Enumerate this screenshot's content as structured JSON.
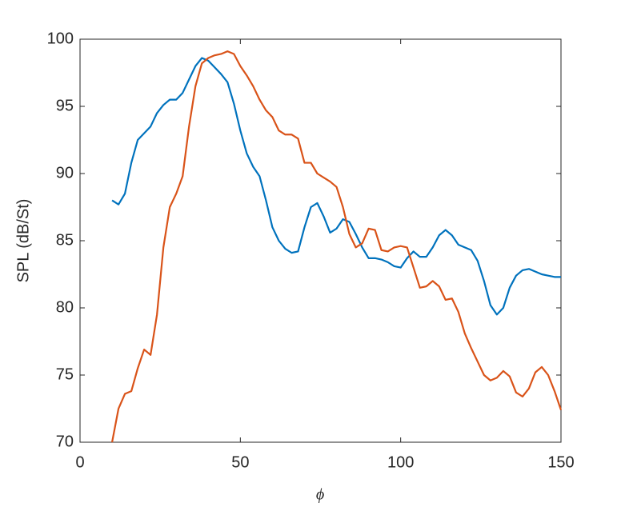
{
  "chart_data": {
    "type": "line",
    "xlabel": "ϕ",
    "ylabel": "SPL (dB/St)",
    "x": [
      10,
      12,
      14,
      16,
      18,
      20,
      22,
      24,
      26,
      28,
      30,
      32,
      34,
      36,
      38,
      40,
      42,
      44,
      46,
      48,
      50,
      52,
      54,
      56,
      58,
      60,
      62,
      64,
      66,
      68,
      70,
      72,
      74,
      76,
      78,
      80,
      82,
      84,
      86,
      88,
      90,
      92,
      94,
      96,
      98,
      100,
      102,
      104,
      106,
      108,
      110,
      112,
      114,
      116,
      118,
      120,
      122,
      124,
      126,
      128,
      130,
      132,
      134,
      136,
      138,
      140,
      142,
      144,
      146,
      148,
      150
    ],
    "series": [
      {
        "color": "#0072BD",
        "values": [
          88.0,
          87.7,
          88.5,
          90.8,
          92.5,
          93.0,
          93.5,
          94.5,
          95.1,
          95.5,
          95.5,
          96.0,
          97.0,
          98.0,
          98.6,
          98.4,
          97.9,
          97.4,
          96.8,
          95.2,
          93.2,
          91.5,
          90.5,
          89.8,
          88.0,
          86.0,
          85.0,
          84.4,
          84.1,
          84.2,
          86.0,
          87.5,
          87.8,
          86.8,
          85.6,
          85.9,
          86.6,
          86.4,
          85.5,
          84.5,
          83.7,
          83.7,
          83.6,
          83.4,
          83.1,
          83.0,
          83.7,
          84.2,
          83.8,
          83.8,
          84.5,
          85.4,
          85.8,
          85.4,
          84.7,
          84.5,
          84.3,
          83.5,
          82.0,
          80.2,
          79.5,
          80.0,
          81.5,
          82.4,
          82.8,
          82.9,
          82.7,
          82.5,
          82.4,
          82.3,
          82.3
        ]
      },
      {
        "color": "#D95319",
        "values": [
          70.0,
          72.5,
          73.6,
          73.8,
          75.5,
          76.9,
          76.5,
          79.5,
          84.5,
          87.5,
          88.5,
          89.8,
          93.5,
          96.5,
          98.2,
          98.6,
          98.8,
          98.9,
          99.1,
          98.9,
          98.0,
          97.3,
          96.5,
          95.5,
          94.7,
          94.2,
          93.2,
          92.9,
          92.9,
          92.6,
          90.8,
          90.8,
          90.0,
          89.7,
          89.4,
          89.0,
          87.5,
          85.5,
          84.5,
          84.8,
          85.9,
          85.8,
          84.3,
          84.2,
          84.5,
          84.6,
          84.5,
          83.0,
          81.5,
          81.6,
          82.0,
          81.6,
          80.6,
          80.7,
          79.7,
          78.1,
          77.0,
          76.0,
          75.0,
          74.6,
          74.8,
          75.3,
          74.9,
          73.7,
          73.4,
          74.0,
          75.2,
          75.6,
          75.0,
          73.8,
          72.4
        ]
      }
    ],
    "xlim": [
      0,
      150
    ],
    "xticks": [
      0,
      50,
      100,
      150
    ],
    "ylim": [
      70,
      100
    ],
    "yticks": [
      70,
      75,
      80,
      85,
      90,
      95,
      100
    ],
    "grid": false
  }
}
